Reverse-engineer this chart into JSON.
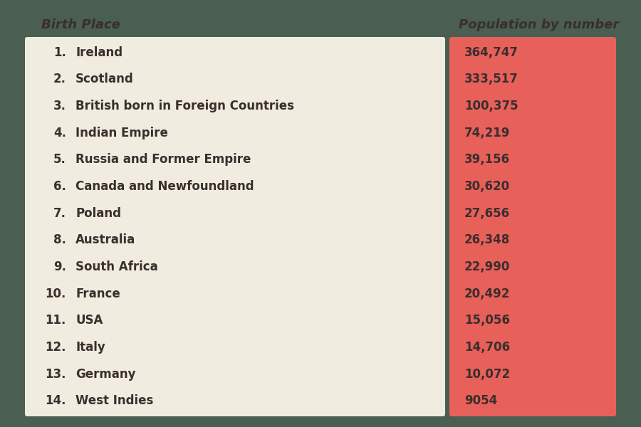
{
  "title_left": "Birth Place",
  "title_right": "Population by number",
  "bg_color": "#4a5e52",
  "left_panel_color": "#f0ece0",
  "right_panel_color": "#e8605a",
  "header_color": "#3a2e2e",
  "text_color": "#3a2e2e",
  "value_color": "#3a2e2e",
  "rows": [
    {
      "rank": "1.",
      "place": "Ireland",
      "value": "364,747"
    },
    {
      "rank": "2.",
      "place": "Scotland",
      "value": "333,517"
    },
    {
      "rank": "3.",
      "place": "British born in Foreign Countries",
      "value": "100,375"
    },
    {
      "rank": "4.",
      "place": "Indian Empire",
      "value": "74,219"
    },
    {
      "rank": "5.",
      "place": "Russia and Former Empire",
      "value": "39,156"
    },
    {
      "rank": "6.",
      "place": "Canada and Newfoundland",
      "value": "30,620"
    },
    {
      "rank": "7.",
      "place": "Poland",
      "value": "27,656"
    },
    {
      "rank": "8.",
      "place": "Australia",
      "value": "26,348"
    },
    {
      "rank": "9.",
      "place": "South Africa",
      "value": "22,990"
    },
    {
      "rank": "10.",
      "place": "France",
      "value": "20,492"
    },
    {
      "rank": "11.",
      "place": "USA",
      "value": "15,056"
    },
    {
      "rank": "12.",
      "place": "Italy",
      "value": "14,706"
    },
    {
      "rank": "13.",
      "place": "Germany",
      "value": "10,072"
    },
    {
      "rank": "14.",
      "place": "West Indies",
      "value": "9054"
    }
  ]
}
